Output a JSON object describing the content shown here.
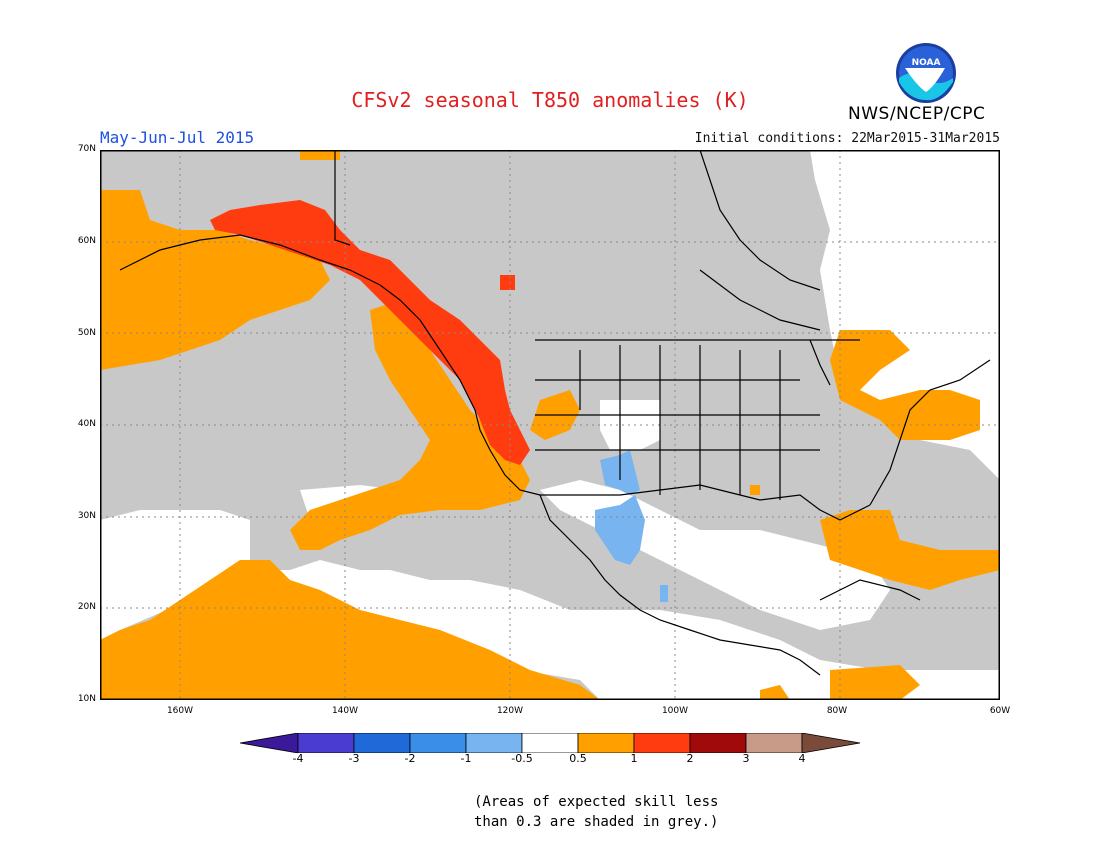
{
  "header": {
    "title": "CFSv2 seasonal T850 anomalies (K)",
    "period": "May-Jun-Jul 2015",
    "initial_conditions": "Initial conditions: 22Mar2015-31Mar2015",
    "agency": "NWS/NCEP/CPC",
    "logo_text": "NOAA"
  },
  "map": {
    "lat_labels": [
      "70N",
      "60N",
      "50N",
      "40N",
      "30N",
      "20N",
      "10N"
    ],
    "lon_labels": [
      "160W",
      "140W",
      "120W",
      "100W",
      "80W",
      "60W"
    ],
    "colors": {
      "grey_low_skill": "#c8c8c8",
      "orange": "#ffa000",
      "red_orange": "#ff3c10",
      "light_blue": "#78b4f0",
      "white": "#ffffff"
    }
  },
  "colorbar": {
    "labels": [
      "-4",
      "-3",
      "-2",
      "-1",
      "-0.5",
      "0.5",
      "1",
      "2",
      "3",
      "4"
    ],
    "colors": [
      "#3b1a9a",
      "#4a3cd0",
      "#1f6ad8",
      "#3a8ee8",
      "#78b4f0",
      "#ffffff",
      "#ffa000",
      "#ff3c10",
      "#a00a0a",
      "#c89a88",
      "#7a4a3a"
    ]
  },
  "footnote": {
    "line1": "(Areas of expected skill less",
    "line2": "than 0.3 are shaded in grey.)"
  }
}
